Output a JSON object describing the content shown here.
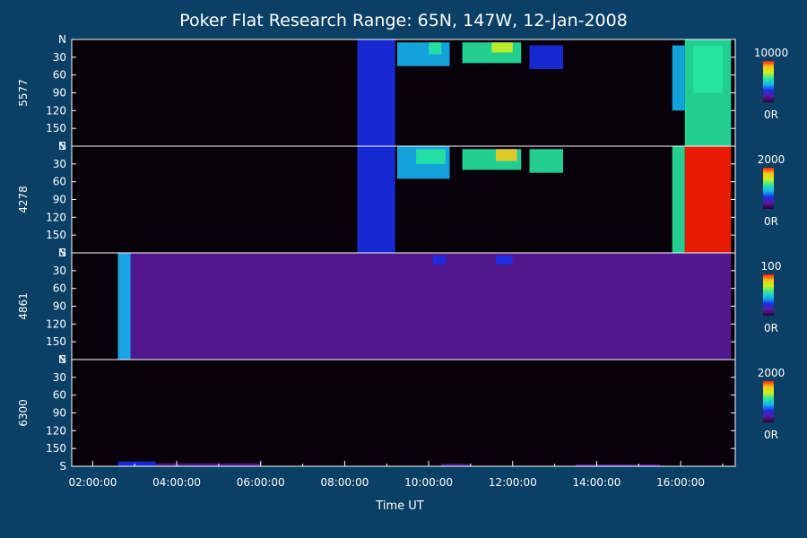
{
  "background": "#0a3f66",
  "chart_data": {
    "type": "heatmap",
    "title": "Poker Flat Research Range: 65N, 147W, 12-Jan-2008",
    "xlabel": "Time UT",
    "x_ticks": [
      "02:00:00",
      "04:00:00",
      "06:00:00",
      "08:00:00",
      "10:00:00",
      "12:00:00",
      "14:00:00",
      "16:00:00"
    ],
    "x_range_hours": [
      1.5,
      17.3
    ],
    "y_range_deg": [
      0,
      180
    ],
    "y_ticks": [
      "N",
      "30",
      "60",
      "90",
      "120",
      "150",
      "S"
    ],
    "colormap": [
      "#2a0036",
      "#5a1a9a",
      "#1a2ee6",
      "#14b4f0",
      "#26e6a0",
      "#c8f01e",
      "#f5c81e",
      "#ff1e00"
    ],
    "panels": [
      {
        "name": "5577",
        "scale_max": "10000",
        "scale_min": "0R",
        "features": [
          {
            "t0": 8.3,
            "t1": 9.2,
            "a0": 0,
            "a1": 180,
            "level": 0.22
          },
          {
            "t0": 9.25,
            "t1": 10.5,
            "a0": 5,
            "a1": 45,
            "level": 0.45
          },
          {
            "t0": 10.0,
            "t1": 10.3,
            "a0": 5,
            "a1": 25,
            "level": 0.6
          },
          {
            "t0": 10.8,
            "t1": 12.2,
            "a0": 5,
            "a1": 40,
            "level": 0.55
          },
          {
            "t0": 11.5,
            "t1": 12.0,
            "a0": 5,
            "a1": 22,
            "level": 0.7
          },
          {
            "t0": 12.4,
            "t1": 13.2,
            "a0": 10,
            "a1": 50,
            "level": 0.35
          },
          {
            "t0": 15.8,
            "t1": 16.1,
            "a0": 10,
            "a1": 120,
            "level": 0.45
          },
          {
            "t0": 16.1,
            "t1": 17.2,
            "a0": 0,
            "a1": 180,
            "level": 0.52
          },
          {
            "t0": 16.3,
            "t1": 17.0,
            "a0": 10,
            "a1": 90,
            "level": 0.6
          }
        ]
      },
      {
        "name": "4278",
        "scale_max": "2000",
        "scale_min": "0R",
        "features": [
          {
            "t0": 8.3,
            "t1": 9.2,
            "a0": 0,
            "a1": 180,
            "level": 0.22
          },
          {
            "t0": 9.25,
            "t1": 10.5,
            "a0": 0,
            "a1": 55,
            "level": 0.45
          },
          {
            "t0": 9.7,
            "t1": 10.4,
            "a0": 5,
            "a1": 30,
            "level": 0.62
          },
          {
            "t0": 10.8,
            "t1": 12.2,
            "a0": 5,
            "a1": 40,
            "level": 0.62
          },
          {
            "t0": 11.6,
            "t1": 12.1,
            "a0": 5,
            "a1": 25,
            "level": 0.9
          },
          {
            "t0": 12.4,
            "t1": 13.2,
            "a0": 5,
            "a1": 45,
            "level": 0.5
          },
          {
            "t0": 15.8,
            "t1": 16.1,
            "a0": 0,
            "a1": 180,
            "level": 0.55
          },
          {
            "t0": 16.1,
            "t1": 17.2,
            "a0": 0,
            "a1": 180,
            "level": 0.97
          }
        ]
      },
      {
        "name": "4861",
        "scale_max": "100",
        "scale_min": "0R",
        "features": [
          {
            "t0": 2.6,
            "t1": 17.2,
            "a0": 0,
            "a1": 180,
            "level": 0.18
          },
          {
            "t0": 2.6,
            "t1": 2.9,
            "a0": 0,
            "a1": 180,
            "level": 0.4
          },
          {
            "t0": 10.1,
            "t1": 10.4,
            "a0": 5,
            "a1": 20,
            "level": 0.3
          },
          {
            "t0": 11.6,
            "t1": 12.0,
            "a0": 5,
            "a1": 20,
            "level": 0.3
          }
        ]
      },
      {
        "name": "6300",
        "scale_max": "2000",
        "scale_min": "0R",
        "features": [
          {
            "t0": 2.6,
            "t1": 3.5,
            "a0": 172,
            "a1": 180,
            "level": 0.35
          },
          {
            "t0": 3.5,
            "t1": 6.0,
            "a0": 175,
            "a1": 180,
            "level": 0.2
          },
          {
            "t0": 10.3,
            "t1": 11.0,
            "a0": 176,
            "a1": 180,
            "level": 0.18
          },
          {
            "t0": 13.5,
            "t1": 15.5,
            "a0": 177,
            "a1": 180,
            "level": 0.15
          }
        ]
      }
    ]
  }
}
